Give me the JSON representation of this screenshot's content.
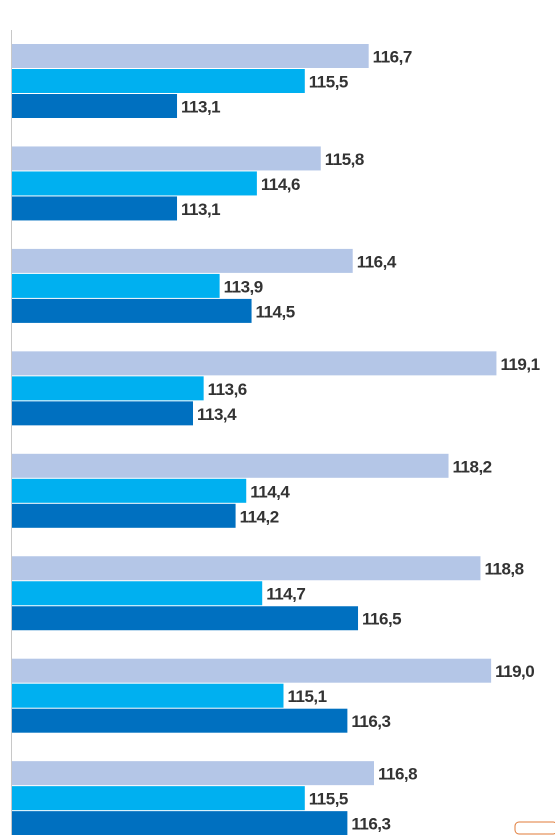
{
  "chart_data": {
    "type": "bar",
    "orientation": "horizontal",
    "categories": [
      null,
      null,
      null,
      null,
      null,
      null,
      null,
      null
    ],
    "series": [
      {
        "color": "#b4c6e7",
        "values": [
          116.7,
          115.8,
          116.4,
          119.1,
          118.2,
          118.8,
          119.0,
          116.8
        ],
        "value_labels": [
          "116,7",
          "115,8",
          "116,4",
          "119,1",
          "118,2",
          "118,8",
          "119,0",
          "116,8"
        ]
      },
      {
        "color": "#00b0f0",
        "values": [
          115.5,
          114.6,
          113.9,
          113.6,
          114.4,
          114.7,
          115.1,
          115.5
        ],
        "value_labels": [
          "115,5",
          "114,6",
          "113,9",
          "113,6",
          "114,4",
          "114,7",
          "115,1",
          "115,5"
        ]
      },
      {
        "color": "#0070c0",
        "values": [
          113.1,
          113.1,
          114.5,
          113.4,
          114.2,
          116.5,
          116.3,
          116.3
        ],
        "value_labels": [
          "113,1",
          "113,1",
          "114,5",
          "113,4",
          "114,2",
          "116,5",
          "116,3",
          "116,3"
        ]
      }
    ],
    "xlim": [
      110,
      120.2
    ]
  }
}
